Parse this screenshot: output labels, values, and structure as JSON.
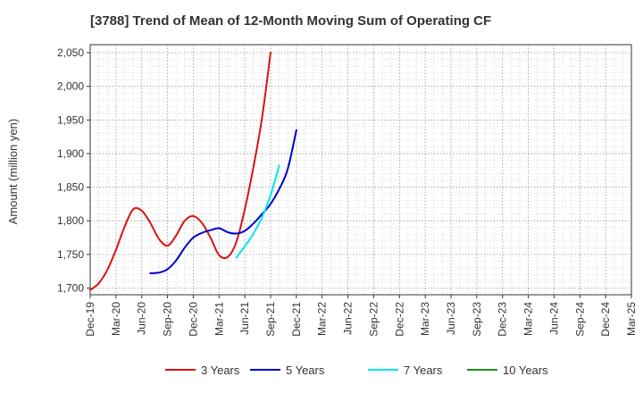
{
  "chart_data": {
    "type": "line",
    "title": "[3788]  Trend of Mean of 12-Month Moving Sum of Operating CF",
    "xlabel": "",
    "ylabel": "Amount (million yen)",
    "ylim": [
      1690,
      2062
    ],
    "yticks": [
      1700,
      1750,
      1800,
      1850,
      1900,
      1950,
      2000,
      2050
    ],
    "ytick_labels": [
      "1,700",
      "1,750",
      "1,800",
      "1,850",
      "1,900",
      "1,950",
      "2,000",
      "2,050"
    ],
    "xticks": [
      "Dec-19",
      "Mar-20",
      "Jun-20",
      "Sep-20",
      "Dec-20",
      "Mar-21",
      "Jun-21",
      "Sep-21",
      "Dec-21",
      "Mar-22",
      "Jun-22",
      "Sep-22",
      "Dec-22",
      "Mar-23",
      "Jun-23",
      "Sep-23",
      "Dec-23",
      "Mar-24",
      "Jun-24",
      "Sep-24",
      "Dec-24",
      "Mar-25"
    ],
    "grid": true,
    "legend_position": "bottom",
    "series": [
      {
        "name": "3 Years",
        "color": "#dd1111",
        "points": [
          [
            0,
            1697
          ],
          [
            1,
            1707
          ],
          [
            2,
            1727
          ],
          [
            3,
            1757
          ],
          [
            4,
            1791
          ],
          [
            5,
            1817
          ],
          [
            6,
            1815
          ],
          [
            7,
            1797
          ],
          [
            8,
            1773
          ],
          [
            9,
            1763
          ],
          [
            10,
            1778
          ],
          [
            11,
            1800
          ],
          [
            12,
            1807
          ],
          [
            13,
            1797
          ],
          [
            14,
            1775
          ],
          [
            15,
            1749
          ],
          [
            16,
            1746
          ],
          [
            17,
            1768
          ],
          [
            18,
            1817
          ],
          [
            19,
            1880
          ],
          [
            20,
            1953
          ],
          [
            21,
            2050
          ]
        ]
      },
      {
        "name": "5 Years",
        "color": "#0000cc",
        "points": [
          [
            7,
            1722
          ],
          [
            8,
            1723
          ],
          [
            9,
            1728
          ],
          [
            10,
            1741
          ],
          [
            11,
            1760
          ],
          [
            12,
            1775
          ],
          [
            13,
            1782
          ],
          [
            14,
            1786
          ],
          [
            15,
            1789
          ],
          [
            16,
            1783
          ],
          [
            17,
            1781
          ],
          [
            18,
            1785
          ],
          [
            19,
            1796
          ],
          [
            20,
            1810
          ],
          [
            21,
            1825
          ],
          [
            22,
            1847
          ],
          [
            23,
            1877
          ],
          [
            24,
            1935
          ]
        ]
      },
      {
        "name": "7 Years",
        "color": "#00e5ee",
        "points": [
          [
            17,
            1745
          ],
          [
            18,
            1762
          ],
          [
            19,
            1781
          ],
          [
            20,
            1805
          ],
          [
            21,
            1838
          ],
          [
            22,
            1882
          ]
        ]
      },
      {
        "name": "10 Years",
        "color": "#228b22",
        "points": []
      }
    ]
  }
}
